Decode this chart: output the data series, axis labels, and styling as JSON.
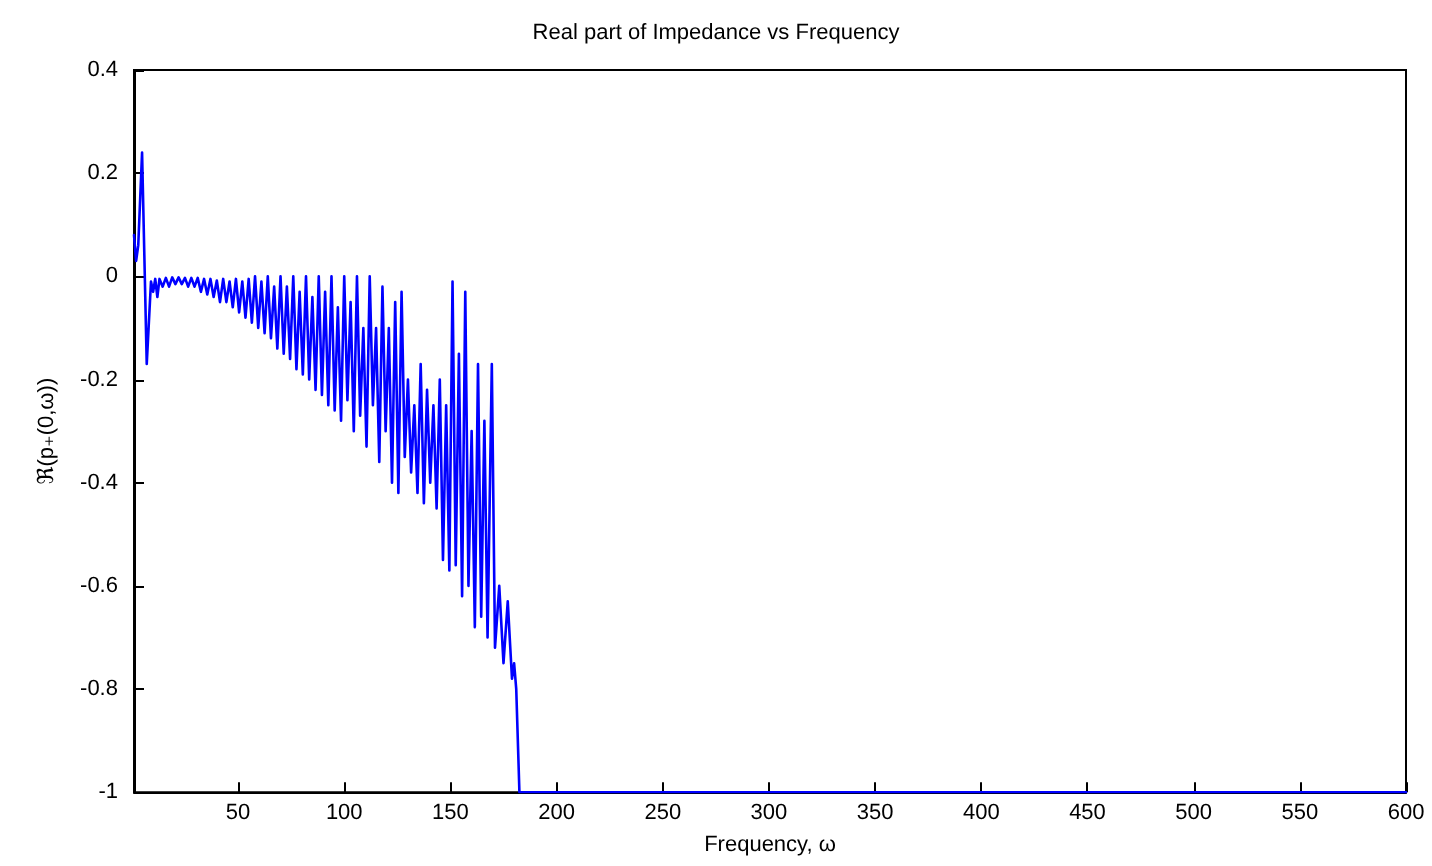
{
  "chart_data": {
    "type": "line",
    "title": "Real part of Impedance vs Frequency",
    "xlabel": "Frequency, ω",
    "ylabel": "ℜ(p₊(0,ω))",
    "xlim": [
      1,
      600
    ],
    "xticks": [
      50,
      100,
      150,
      200,
      250,
      300,
      350,
      400,
      450,
      500,
      550,
      600
    ],
    "ylim": [
      -1,
      0.4
    ],
    "yticks": [
      -1,
      -0.8,
      -0.6,
      -0.4,
      -0.2,
      0,
      0.2,
      0.4
    ],
    "grid": false,
    "marker": "none",
    "line_style": "solid",
    "series": [
      {
        "color": "#0000ff",
        "x": [
          1,
          2,
          3,
          4.8,
          7,
          9,
          10,
          11,
          12,
          13,
          14.5,
          16,
          17.5,
          19,
          20.5,
          22,
          23.5,
          25,
          26.5,
          28,
          29.5,
          31,
          32.5,
          34,
          35.5,
          37,
          38.5,
          40,
          41.5,
          43,
          44.5,
          46,
          47.5,
          49,
          50.5,
          52,
          53.5,
          55,
          56.5,
          58,
          59.5,
          61,
          62.5,
          64,
          65.5,
          67,
          68.5,
          70,
          71.5,
          73,
          74.5,
          76,
          77.5,
          79,
          80.5,
          82,
          83.5,
          85,
          86.5,
          88,
          89.5,
          91,
          92.5,
          94,
          95.5,
          97,
          98.5,
          100,
          101.5,
          103,
          104.5,
          106,
          107.5,
          109,
          110.5,
          112,
          113.5,
          115,
          116.5,
          118,
          119.5,
          121,
          122.5,
          124,
          125.5,
          127,
          128.5,
          130,
          131.5,
          133,
          134.5,
          136,
          137.5,
          139,
          140.5,
          142,
          143.5,
          145,
          146.5,
          148,
          149.5,
          151,
          152.5,
          154,
          155.5,
          157,
          158.5,
          160,
          161.5,
          163,
          164.5,
          166,
          167.5,
          169.5,
          171,
          173,
          175,
          177,
          179,
          180,
          181,
          182.5,
          600
        ],
        "values": [
          0.08,
          0.03,
          0.06,
          0.24,
          -0.17,
          -0.01,
          -0.03,
          -0.005,
          -0.04,
          -0.005,
          -0.02,
          -0.003,
          -0.02,
          -0.002,
          -0.015,
          -0.002,
          -0.015,
          -0.003,
          -0.02,
          -0.003,
          -0.02,
          -0.003,
          -0.03,
          -0.005,
          -0.035,
          -0.005,
          -0.04,
          -0.008,
          -0.05,
          -0.005,
          -0.05,
          -0.01,
          -0.06,
          -0.005,
          -0.07,
          -0.01,
          -0.08,
          -0.005,
          -0.09,
          0,
          -0.1,
          -0.01,
          -0.11,
          0,
          -0.12,
          -0.02,
          -0.14,
          0,
          -0.15,
          -0.02,
          -0.16,
          0,
          -0.18,
          -0.03,
          -0.19,
          0,
          -0.2,
          -0.04,
          -0.22,
          0,
          -0.23,
          -0.03,
          -0.25,
          0,
          -0.26,
          -0.06,
          -0.28,
          0,
          -0.24,
          -0.05,
          -0.3,
          0,
          -0.27,
          -0.1,
          -0.33,
          0,
          -0.25,
          -0.1,
          -0.36,
          -0.02,
          -0.3,
          -0.1,
          -0.4,
          -0.05,
          -0.42,
          -0.03,
          -0.35,
          -0.2,
          -0.38,
          -0.25,
          -0.42,
          -0.17,
          -0.44,
          -0.22,
          -0.4,
          -0.25,
          -0.45,
          -0.2,
          -0.55,
          -0.25,
          -0.57,
          -0.01,
          -0.56,
          -0.15,
          -0.62,
          -0.03,
          -0.6,
          -0.3,
          -0.68,
          -0.17,
          -0.66,
          -0.28,
          -0.7,
          -0.17,
          -0.72,
          -0.6,
          -0.75,
          -0.63,
          -0.78,
          -0.75,
          -0.8,
          -1,
          -1
        ]
      }
    ]
  }
}
